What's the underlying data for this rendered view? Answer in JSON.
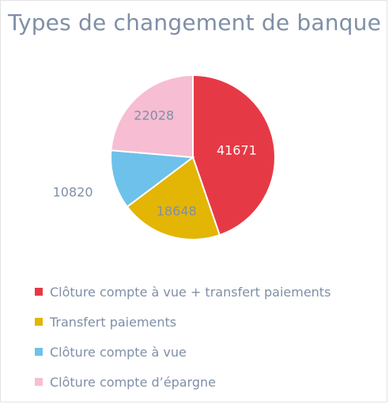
{
  "chart_data": {
    "type": "pie",
    "title": "Types de changement de banque",
    "categories": [
      "Clôture compte à vue + transfert paiements",
      "Transfert paiements",
      "Clôture compte à vue",
      "Clôture compte d’épargne"
    ],
    "values": [
      41671,
      18648,
      10820,
      22028
    ],
    "data_labels": [
      "41671",
      "18648",
      "10820",
      "22028"
    ],
    "colors": [
      "#e63946",
      "#e3b505",
      "#6ec1ea",
      "#f6bdd3"
    ],
    "label_colors": [
      "#ffffff",
      "#7f8fa6",
      "#7f8fa6",
      "#7f8fa6"
    ],
    "legend_position": "bottom-left"
  }
}
